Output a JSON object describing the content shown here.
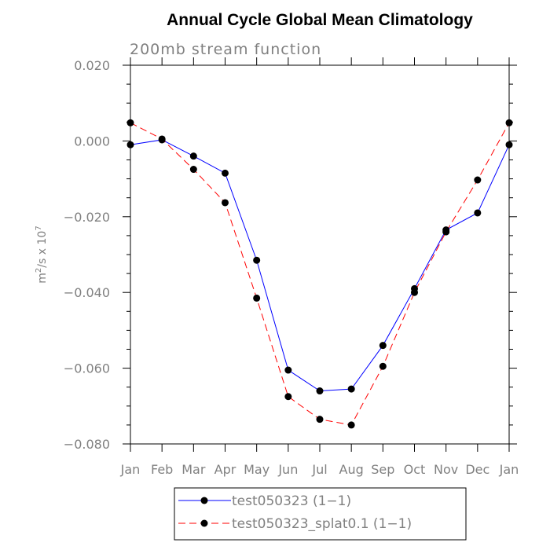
{
  "chart_data": {
    "type": "line",
    "title": "Annual Cycle Global Mean Climatology",
    "subtitle": "200mb stream function",
    "ylabel": "m²/s x 10⁷",
    "ylabel_base": "m",
    "ylabel_sup1": "2",
    "ylabel_mid": "/s x 10",
    "ylabel_sup2": "7",
    "xlabel": "",
    "categories": [
      "Jan",
      "Feb",
      "Mar",
      "Apr",
      "May",
      "Jun",
      "Jul",
      "Aug",
      "Sep",
      "Oct",
      "Nov",
      "Dec",
      "Jan"
    ],
    "ylim": [
      -0.08,
      0.02
    ],
    "yticks": [
      0.02,
      0.0,
      -0.02,
      -0.04,
      -0.06,
      -0.08
    ],
    "ytick_labels": [
      "0.020",
      "0.000",
      "−0.020",
      "−0.040",
      "−0.060",
      "−0.080"
    ],
    "grid": false,
    "legend_position": "bottom",
    "series": [
      {
        "name": "test050323 (1−1)",
        "color": "#0000ff",
        "dash": "solid",
        "marker": "filled-circle",
        "values": [
          -0.001,
          0.0003,
          -0.004,
          -0.0085,
          -0.0315,
          -0.0605,
          -0.066,
          -0.0655,
          -0.054,
          -0.039,
          -0.0235,
          -0.019,
          -0.001
        ]
      },
      {
        "name": "test050323_splat0.1 (1−1)",
        "color": "#ff0000",
        "dash": "dashed",
        "marker": "filled-circle",
        "values": [
          0.0048,
          0.0005,
          -0.0075,
          -0.0163,
          -0.0415,
          -0.0675,
          -0.0735,
          -0.075,
          -0.0595,
          -0.04,
          -0.024,
          -0.0103,
          0.0048
        ]
      }
    ]
  }
}
